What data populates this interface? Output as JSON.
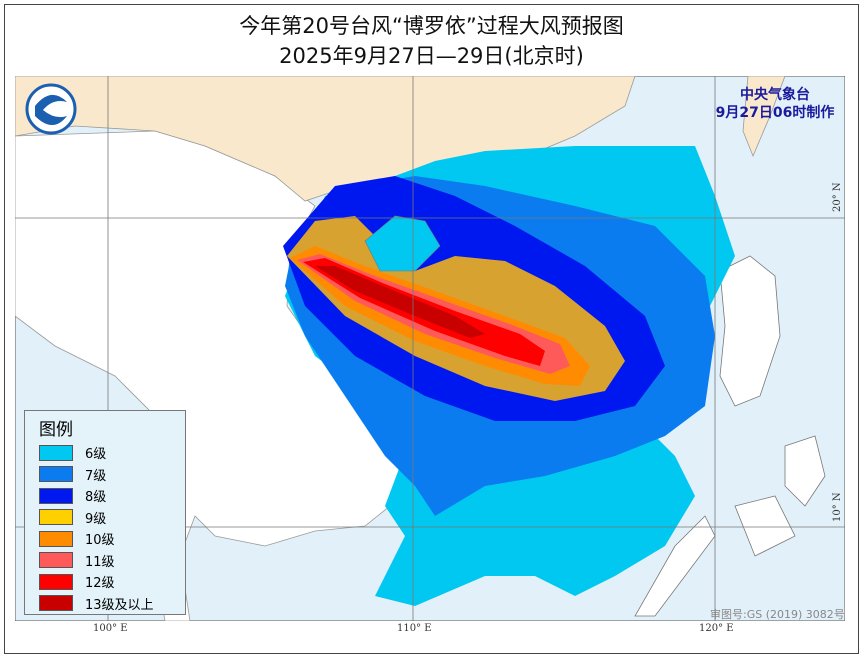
{
  "title": "今年第20号台风“博罗依”过程大风预报图",
  "subtitle": "2025年9月27日—29日(北京时)",
  "agency": {
    "name": "中央气象台",
    "issued": "9月27日06时制作"
  },
  "logo_icon": "cma-logo-icon",
  "legend": {
    "title": "图例",
    "items": [
      {
        "label": "6级",
        "color": "#00c8f0"
      },
      {
        "label": "7级",
        "color": "#0a7cf0"
      },
      {
        "label": "8级",
        "color": "#0018f0"
      },
      {
        "label": "9级",
        "color": "#ffd000"
      },
      {
        "label": "10级",
        "color": "#ff8c00"
      },
      {
        "label": "11级",
        "color": "#ff5a5a"
      },
      {
        "label": "12级",
        "color": "#ff0000"
      },
      {
        "label": "13级及以上",
        "color": "#c80000"
      }
    ]
  },
  "axes": {
    "lon_labels": [
      "100° E",
      "110° E",
      "120° E"
    ],
    "lat_labels": [
      "20° N",
      "10° N"
    ]
  },
  "review_number": "审图号:GS (2019) 3082号",
  "colors": {
    "sea": "#e2f1f9",
    "china_land": "#fae8cc",
    "other_land": "#ffffff"
  }
}
